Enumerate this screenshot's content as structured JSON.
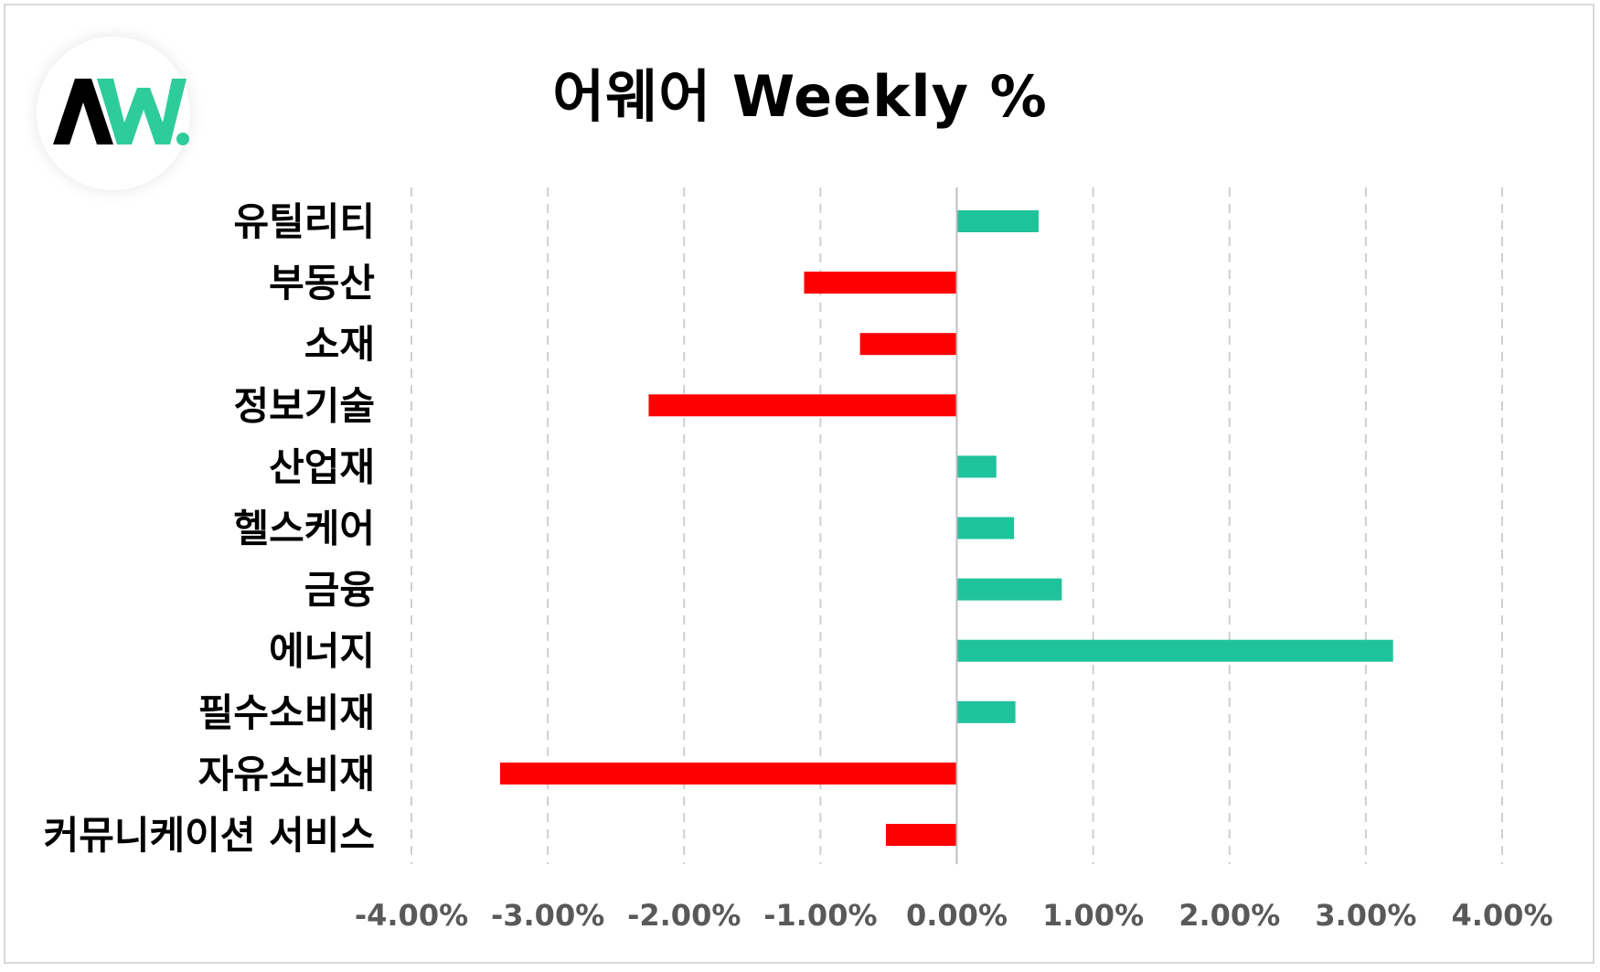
{
  "logo": {
    "text": "AW.",
    "colors": {
      "a": "#000000",
      "w": "#2ecc9a"
    }
  },
  "chart_data": {
    "type": "bar",
    "orientation": "horizontal",
    "title": "어웨어 Weekly %",
    "categories": [
      "유틸리티",
      "부동산",
      "소재",
      "정보기술",
      "산업재",
      "헬스케어",
      "금융",
      "에너지",
      "필수소비재",
      "자유소비재",
      "커뮤니케이션 서비스"
    ],
    "values": [
      0.6,
      -1.12,
      -0.71,
      -2.26,
      0.29,
      0.42,
      0.77,
      3.2,
      0.43,
      -3.35,
      -0.52
    ],
    "xlim": [
      -4,
      4
    ],
    "x_ticks": [
      -4,
      -3,
      -2,
      -1,
      0,
      1,
      2,
      3,
      4
    ],
    "x_tick_labels": [
      "-4.00%",
      "-3.00%",
      "-2.00%",
      "-1.00%",
      "0.00%",
      "1.00%",
      "2.00%",
      "3.00%",
      "4.00%"
    ],
    "grid": "vertical dashed",
    "positive_color": "#1fc39b",
    "negative_color": "#ff0000",
    "legend": "none"
  }
}
